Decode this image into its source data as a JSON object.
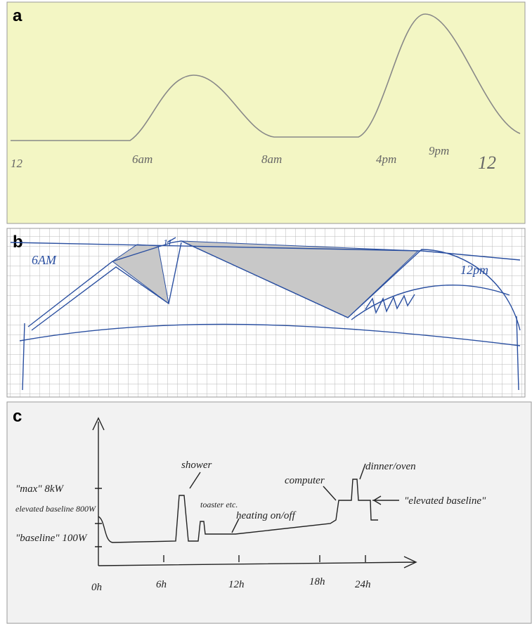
{
  "panels": [
    {
      "label": "a",
      "texts": [
        "12",
        "6am",
        "8am",
        "4pm",
        "9pm",
        "12"
      ]
    },
    {
      "label": "b",
      "texts": [
        "6AM",
        "11",
        "12pm"
      ]
    },
    {
      "label": "c",
      "texts": [
        "shower",
        "toaster etc.",
        "heating on/off",
        "computer",
        "dinner/oven",
        "\"max\" 8kW",
        "elevated baseline 800W",
        "\"baseline\" 100W",
        "\"elevated baseline\"",
        "0h",
        "6h",
        "12h",
        "18h",
        "24h"
      ]
    }
  ]
}
